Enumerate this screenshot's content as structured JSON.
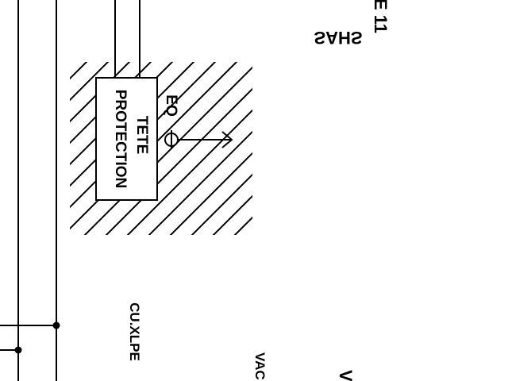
{
  "diagram": {
    "labels": {
      "protection": "PROTECTION",
      "tete": "TETE",
      "eq": "EQ",
      "cable": "CU.XLPE",
      "sahs": "SAHS",
      "e11": "E 11",
      "vac": "VAC",
      "v": "V"
    },
    "colors": {
      "stroke": "#000000",
      "background": "#ffffff"
    }
  }
}
